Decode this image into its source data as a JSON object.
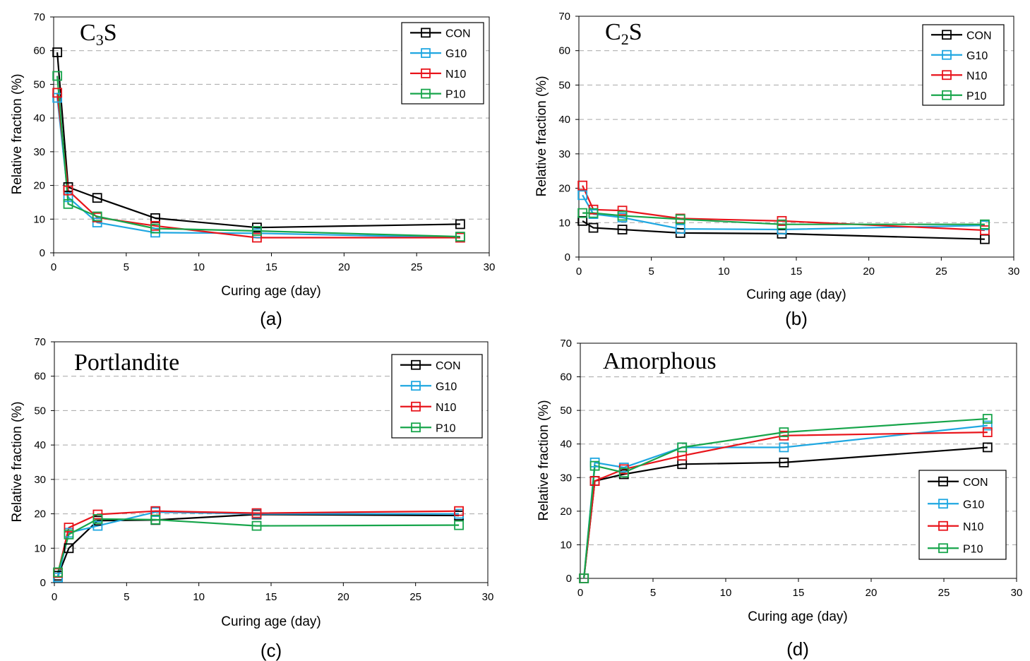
{
  "colors": {
    "CON": "#000000",
    "G10": "#1fa7e1",
    "N10": "#e8141b",
    "P10": "#17a54b"
  },
  "chart_data": [
    {
      "type": "line",
      "title": "C3S",
      "title_main": "C",
      "title_sub": "3",
      "title_tail": "S",
      "caption": "(a)",
      "xlabel": "Curing age (day)",
      "ylabel": "Relative fraction (%)",
      "xlim": [
        0,
        30
      ],
      "ylim": [
        0,
        70
      ],
      "xticks": [
        "0",
        "5",
        "10",
        "15",
        "20",
        "25",
        "30"
      ],
      "yticks": [
        "0",
        "10",
        "20",
        "30",
        "40",
        "50",
        "60",
        "70"
      ],
      "grid": true,
      "legend_position": "top-right",
      "x": [
        0.25,
        1,
        3,
        7,
        14,
        28
      ],
      "series": [
        {
          "name": "CON",
          "values": [
            59.5,
            19.5,
            16.3,
            10.3,
            7.5,
            8.5
          ]
        },
        {
          "name": "G10",
          "values": [
            46.0,
            16.5,
            9.0,
            6.0,
            5.8,
            4.5
          ]
        },
        {
          "name": "N10",
          "values": [
            47.5,
            18.5,
            10.5,
            8.0,
            4.5,
            4.5
          ]
        },
        {
          "name": "P10",
          "values": [
            52.5,
            14.5,
            10.8,
            7.2,
            6.5,
            4.8
          ]
        }
      ]
    },
    {
      "type": "line",
      "title": "C2S",
      "title_main": "C",
      "title_sub": "2",
      "title_tail": "S",
      "caption": "(b)",
      "xlabel": "Curing age (day)",
      "ylabel": "Relative fraction (%)",
      "xlim": [
        0,
        30
      ],
      "ylim": [
        0,
        70
      ],
      "xticks": [
        "0",
        "5",
        "10",
        "15",
        "20",
        "25",
        "30"
      ],
      "yticks": [
        "0",
        "10",
        "20",
        "30",
        "40",
        "50",
        "60",
        "70"
      ],
      "grid": true,
      "legend_position": "top-right",
      "x": [
        0.25,
        1,
        3,
        7,
        14,
        28
      ],
      "series": [
        {
          "name": "CON",
          "values": [
            10.5,
            8.5,
            8.0,
            7.0,
            6.8,
            5.2
          ]
        },
        {
          "name": "G10",
          "values": [
            18.0,
            12.5,
            11.5,
            8.2,
            8.0,
            9.2
          ]
        },
        {
          "name": "N10",
          "values": [
            20.8,
            13.8,
            13.5,
            11.2,
            10.5,
            7.8
          ]
        },
        {
          "name": "P10",
          "values": [
            12.8,
            12.8,
            12.0,
            11.0,
            9.5,
            9.5
          ]
        }
      ]
    },
    {
      "type": "line",
      "title": "Portlandite",
      "title_main": "Portlandite",
      "title_sub": "",
      "title_tail": "",
      "caption": "(c)",
      "xlabel": "Curing age (day)",
      "ylabel": "Relative fraction (%)",
      "xlim": [
        0,
        30
      ],
      "ylim": [
        0,
        70
      ],
      "xticks": [
        "0",
        "5",
        "10",
        "15",
        "20",
        "25",
        "30"
      ],
      "yticks": [
        "0",
        "10",
        "20",
        "30",
        "40",
        "50",
        "60",
        "70"
      ],
      "grid": true,
      "legend_position": "top-right",
      "x": [
        0.25,
        1,
        3,
        7,
        14,
        28
      ],
      "series": [
        {
          "name": "CON",
          "values": [
            2.0,
            10.0,
            18.0,
            18.2,
            19.8,
            19.5
          ]
        },
        {
          "name": "G10",
          "values": [
            1.5,
            14.5,
            16.5,
            20.5,
            20.0,
            20.0
          ]
        },
        {
          "name": "N10",
          "values": [
            2.8,
            16.0,
            19.8,
            20.8,
            20.2,
            20.8
          ]
        },
        {
          "name": "P10",
          "values": [
            3.0,
            14.0,
            18.5,
            18.3,
            16.5,
            16.7
          ]
        }
      ]
    },
    {
      "type": "line",
      "title": "Amorphous",
      "title_main": "Amorphous",
      "title_sub": "",
      "title_tail": "",
      "caption": "(d)",
      "xlabel": "Curing age (day)",
      "ylabel": "Relative fraction (%)",
      "xlim": [
        0,
        30
      ],
      "ylim": [
        0,
        70
      ],
      "xticks": [
        "0",
        "5",
        "10",
        "15",
        "20",
        "25",
        "30"
      ],
      "yticks": [
        "0",
        "10",
        "20",
        "30",
        "40",
        "50",
        "60",
        "70"
      ],
      "grid": true,
      "legend_position": "bottom-right",
      "x": [
        0.25,
        1,
        3,
        7,
        14,
        28
      ],
      "series": [
        {
          "name": "CON",
          "values": [
            0.0,
            29.0,
            31.0,
            34.0,
            34.5,
            39.0
          ]
        },
        {
          "name": "G10",
          "values": [
            0.0,
            34.5,
            33.0,
            39.0,
            39.0,
            45.5
          ]
        },
        {
          "name": "N10",
          "values": [
            0.0,
            29.0,
            32.5,
            36.5,
            42.5,
            43.5
          ]
        },
        {
          "name": "P10",
          "values": [
            0.0,
            33.5,
            31.5,
            39.0,
            43.5,
            47.5
          ]
        }
      ]
    }
  ]
}
